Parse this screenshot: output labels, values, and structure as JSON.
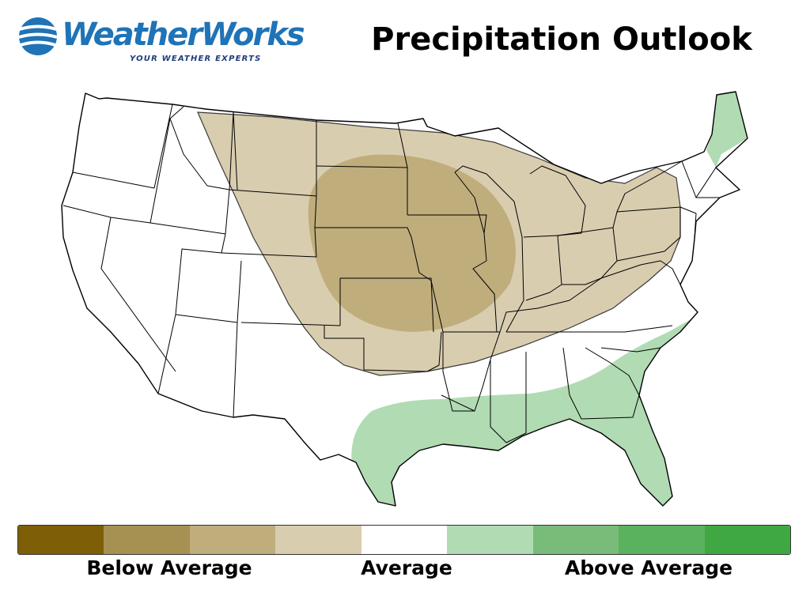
{
  "brand": {
    "name": "WeatherWorks",
    "tagline": "YOUR WEATHER EXPERTS",
    "brand_color": "#1f73b7"
  },
  "title": "Precipitation Outlook",
  "map": {
    "region": "Contiguous United States",
    "state_border_color": "#000000",
    "zones": [
      {
        "category": "Below Average (moderate)",
        "color": "#bfad7c",
        "area": "central Plains and Midwest: South Dakota, Nebraska, Kansas, Iowa, Missouri"
      },
      {
        "category": "Below Average (slight)",
        "color": "#d9cdb0",
        "area": "northern Rockies, northern and central Plains, Great Lakes, Ohio Valley to Pennsylvania"
      },
      {
        "category": "Above Average (slight)",
        "color": "#b1dbb3",
        "area": "Gulf Coast, Florida, Georgia, Carolinas"
      },
      {
        "category": "Above Average (slight)",
        "color": "#b1dbb3",
        "area": "Maine"
      }
    ]
  },
  "legend": {
    "colors": [
      "#7f5e08",
      "#a69153",
      "#bfad7c",
      "#d9cdb0",
      "#ffffff",
      "#b1dbb3",
      "#79bc7a",
      "#5bb25e",
      "#3fa843"
    ],
    "labels": {
      "below": "Below Average",
      "average": "Average",
      "above": "Above Average"
    }
  }
}
